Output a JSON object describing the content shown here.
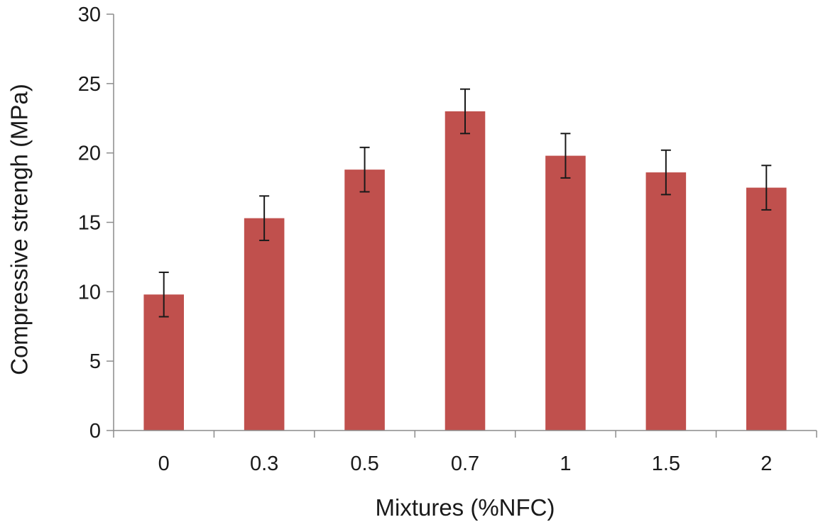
{
  "chart_data": {
    "type": "bar",
    "title": "",
    "xlabel": "Mixtures (%NFC)",
    "ylabel": "Compressive strengh (MPa)",
    "categories": [
      "0",
      "0.3",
      "0.5",
      "0.7",
      "1",
      "1.5",
      "2"
    ],
    "values": [
      9.8,
      15.3,
      18.8,
      23.0,
      19.8,
      18.6,
      17.5
    ],
    "error_bars": [
      1.6,
      1.6,
      1.6,
      1.6,
      1.6,
      1.6,
      1.6
    ],
    "ylim": [
      0,
      30
    ],
    "yticks": [
      "0",
      "5",
      "10",
      "15",
      "20",
      "25",
      "30"
    ],
    "grid": false,
    "legend": "none",
    "bar_color": "#c0504d",
    "axis_color": "#8c8c8c",
    "errorbar_color": "#1a1a1a"
  }
}
